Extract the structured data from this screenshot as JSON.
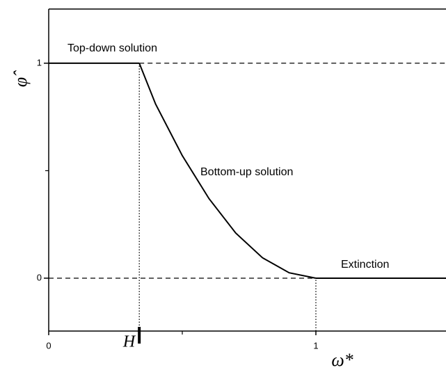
{
  "chart_data": {
    "type": "line",
    "x_label": "ω*",
    "y_label": "φ̂",
    "xlim": [
      0,
      1.487
    ],
    "ylim": [
      -0.246,
      1.252
    ],
    "xticks": [
      0,
      {
        "value": 0.339,
        "label": "H"
      },
      1
    ],
    "xminor_ticks": [
      0.5
    ],
    "yticks": [
      0,
      1
    ],
    "yminor_ticks": [
      0.5
    ],
    "annotations": [
      "Top-down solution",
      "Bottom-up solution",
      "Extinction"
    ],
    "series": [
      {
        "style": "solid",
        "color": "#000000",
        "x": [
          0,
          0.339
        ],
        "values": [
          1,
          1
        ]
      },
      {
        "style": "dashed",
        "color": "#000000",
        "x": [
          0.339,
          1.487
        ],
        "values": [
          1,
          1
        ]
      },
      {
        "style": "solid",
        "color": "#000000",
        "x": [
          0.339,
          0.4,
          0.5,
          0.6,
          0.7,
          0.8,
          0.9,
          1.0
        ],
        "values": [
          1,
          0.81,
          0.57,
          0.37,
          0.21,
          0.095,
          0.025,
          0
        ]
      },
      {
        "style": "solid",
        "color": "#000000",
        "x": [
          1,
          1.487
        ],
        "values": [
          0,
          0
        ]
      },
      {
        "style": "dashed",
        "color": "#000000",
        "x": [
          0,
          1
        ],
        "values": [
          0,
          0
        ]
      },
      {
        "style": "dotted",
        "color": "#000000",
        "x": [
          0.339,
          0.339
        ],
        "values": [
          -0.246,
          1
        ]
      },
      {
        "style": "dotted",
        "color": "#000000",
        "x": [
          1,
          1
        ],
        "values": [
          -0.246,
          0
        ]
      }
    ]
  }
}
